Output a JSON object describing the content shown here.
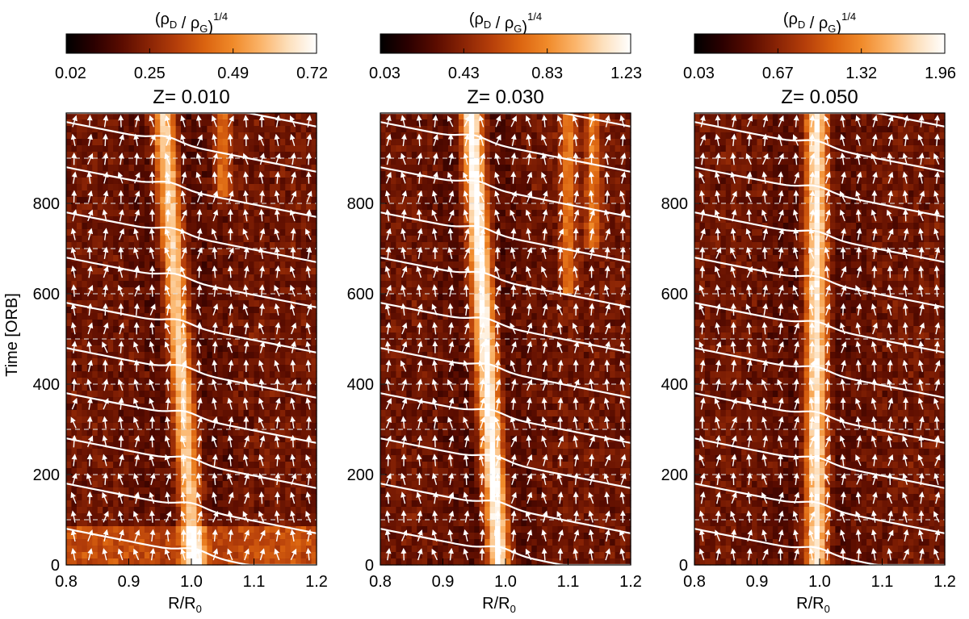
{
  "figure": {
    "colorbar_label_base": "(ρ",
    "colorbar_label_sub_d": "D",
    "colorbar_label_mid": " / ρ",
    "colorbar_label_sub_g": "G",
    "colorbar_label_close": ")",
    "colorbar_label_sup": "1/4",
    "ylabel": "Time [ORB]",
    "xlabel_base": "R/R",
    "xlabel_sub": "0",
    "colormap": [
      "#000000",
      "#2b0000",
      "#5a0c00",
      "#8a2405",
      "#b63f0a",
      "#db6410",
      "#f08a2a",
      "#fbb46a",
      "#fde0bd",
      "#ffffff"
    ],
    "arrow_color": "#ffffff",
    "dashed_gridline_color": "#e0e0e0"
  },
  "chart_data": [
    {
      "type": "heatmap",
      "title": "Z= 0.010",
      "colorbar_ticks": [
        "0.02",
        "0.25",
        "0.49",
        "0.72"
      ],
      "xlim": [
        0.8,
        1.2
      ],
      "ylim": [
        0,
        1000
      ],
      "xticks": [
        "0.8",
        "0.9",
        "1.0",
        "1.1",
        "1.2"
      ],
      "yticks": [
        "0",
        "200",
        "400",
        "600",
        "800"
      ],
      "dust_band": {
        "r_top": 0.955,
        "r_bottom": 1.005,
        "strength": 0.8
      },
      "secondary_bands": [
        {
          "r": 1.05,
          "t_from": 820,
          "t_to": 1000
        }
      ],
      "bottom_bright_until": 90
    },
    {
      "type": "heatmap",
      "title": "Z= 0.030",
      "colorbar_ticks": [
        "0.03",
        "0.43",
        "0.83",
        "1.23"
      ],
      "xlim": [
        0.8,
        1.2
      ],
      "ylim": [
        0,
        1000
      ],
      "xticks": [
        "0.8",
        "0.9",
        "1.0",
        "1.1",
        "1.2"
      ],
      "yticks": [
        "0",
        "200",
        "400",
        "600",
        "800"
      ],
      "dust_band": {
        "r_top": 0.945,
        "r_bottom": 0.99,
        "strength": 1.0
      },
      "secondary_bands": [
        {
          "r": 1.1,
          "t_from": 600,
          "t_to": 1000
        },
        {
          "r": 1.14,
          "t_from": 700,
          "t_to": 1000
        }
      ],
      "bottom_bright_until": 0
    },
    {
      "type": "heatmap",
      "title": "Z= 0.050",
      "colorbar_ticks": [
        "0.03",
        "0.67",
        "1.32",
        "1.96"
      ],
      "xlim": [
        0.8,
        1.2
      ],
      "ylim": [
        0,
        1000
      ],
      "xticks": [
        "0.8",
        "0.9",
        "1.0",
        "1.1",
        "1.2"
      ],
      "yticks": [
        "0",
        "200",
        "400",
        "600",
        "800"
      ],
      "dust_band": {
        "r_top": 0.995,
        "r_bottom": 0.995,
        "strength": 0.9
      },
      "secondary_bands": [],
      "bottom_bright_until": 0
    }
  ]
}
